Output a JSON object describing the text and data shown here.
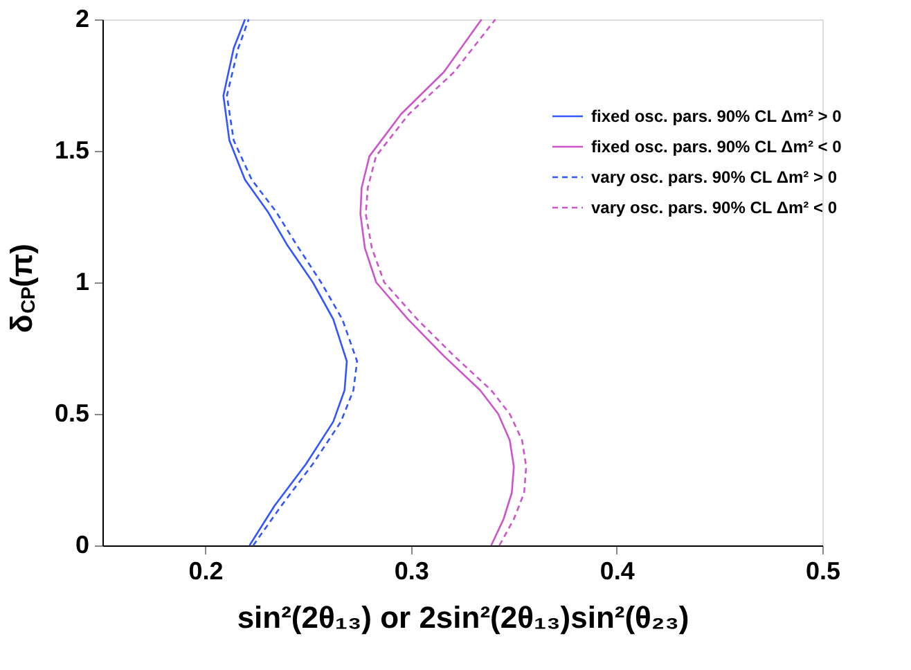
{
  "chart_data": {
    "type": "line",
    "xlabel": "sin²(2θ₁₃) or 2sin²(2θ₁₃)sin²(θ₂₃)",
    "ylabel": "δ$_{CP}$(π)",
    "xlim": [
      0.15,
      0.5
    ],
    "xticks": [
      0.2,
      0.3,
      0.4,
      0.5
    ],
    "ylim": [
      0,
      2
    ],
    "yticks": [
      0,
      0.5,
      1,
      1.5,
      2
    ],
    "grid": false,
    "legend": "top right",
    "marker": "none",
    "series": [
      {
        "name": "fixed osc. pars. 90% CL Δm² > 0",
        "color": "#3355ff",
        "line_style": "solid",
        "x": [
          0.2215,
          0.2336,
          0.249,
          0.2622,
          0.2677,
          0.2688,
          0.2622,
          0.2523,
          0.24,
          0.2303,
          0.2193,
          0.2117,
          0.2088,
          0.2138,
          0.2193
        ],
        "values": [
          0,
          0.15,
          0.31,
          0.47,
          0.59,
          0.7,
          0.86,
          1.0,
          1.14,
          1.27,
          1.39,
          1.54,
          1.71,
          1.89,
          2
        ]
      },
      {
        "name": "fixed osc. pars. 90% CL Δm² < 0",
        "color": "#cc55cc",
        "line_style": "solid",
        "x": [
          0.339,
          0.345,
          0.349,
          0.35,
          0.348,
          0.3424,
          0.3336,
          0.316,
          0.2985,
          0.2831,
          0.2776,
          0.2754,
          0.276,
          0.2798,
          0.2952,
          0.316,
          0.3343
        ],
        "values": [
          0,
          0.1,
          0.2,
          0.3,
          0.4,
          0.5,
          0.59,
          0.72,
          0.86,
          1.0,
          1.13,
          1.26,
          1.36,
          1.48,
          1.64,
          1.8,
          2
        ]
      },
      {
        "name": "vary osc. pars. 90% CL Δm² > 0",
        "color": "#3355ff",
        "line_style": "dashed",
        "x": [
          0.2233,
          0.2369,
          0.2523,
          0.2659,
          0.272,
          0.2738,
          0.2666,
          0.2563,
          0.2446,
          0.2343,
          0.2226,
          0.2138,
          0.2105,
          0.216,
          0.2211
        ],
        "values": [
          0,
          0.15,
          0.31,
          0.47,
          0.59,
          0.7,
          0.86,
          1.0,
          1.14,
          1.27,
          1.39,
          1.54,
          1.71,
          1.89,
          2
        ]
      },
      {
        "name": "vary osc. pars. 90% CL Δm² < 0",
        "color": "#cc55cc",
        "line_style": "dashed",
        "x": [
          0.343,
          0.35,
          0.355,
          0.356,
          0.354,
          0.348,
          0.339,
          0.321,
          0.303,
          0.287,
          0.281,
          0.278,
          0.279,
          0.283,
          0.299,
          0.321,
          0.341
        ],
        "values": [
          0,
          0.1,
          0.2,
          0.3,
          0.4,
          0.5,
          0.59,
          0.72,
          0.86,
          1.0,
          1.13,
          1.26,
          1.36,
          1.48,
          1.64,
          1.8,
          2
        ]
      }
    ]
  }
}
